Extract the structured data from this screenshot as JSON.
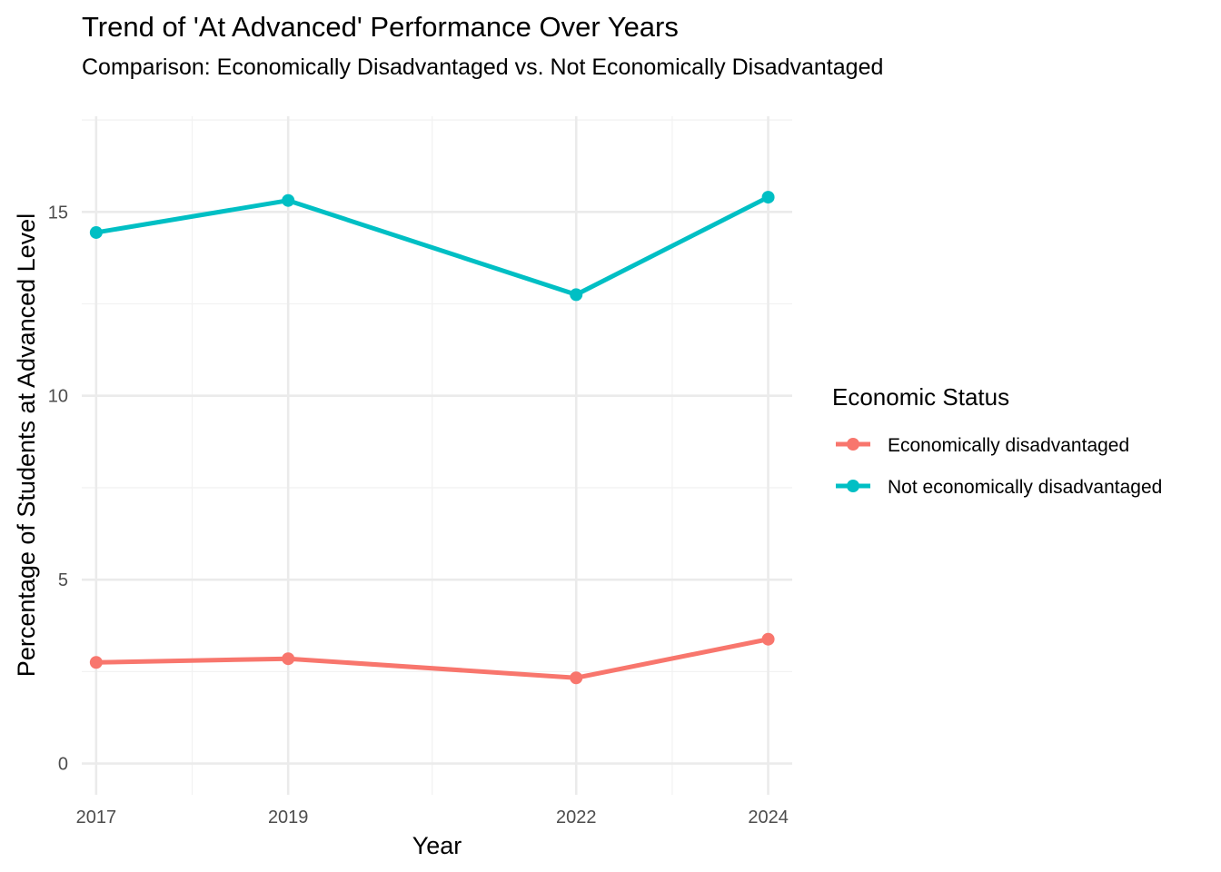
{
  "chart_data": {
    "type": "line",
    "title": "Trend of 'At Advanced' Performance Over Years",
    "subtitle": "Comparison: Economically Disadvantaged vs. Not Economically Disadvantaged",
    "xlabel": "Year",
    "ylabel": "Percentage of Students at Advanced Level",
    "x": [
      2017,
      2019,
      2022,
      2024
    ],
    "x_ticks": [
      "2017",
      "2019",
      "2022",
      "2024"
    ],
    "y_ticks": [
      "0",
      "5",
      "10",
      "15"
    ],
    "xlim": [
      2016.85,
      2024.25
    ],
    "ylim": [
      -0.85,
      17.6
    ],
    "grid": true,
    "legend": {
      "title": "Economic Status",
      "position": "right"
    },
    "series": [
      {
        "name": "Economically disadvantaged",
        "color": "#F8766D",
        "values": [
          2.75,
          2.85,
          2.33,
          3.38
        ]
      },
      {
        "name": "Not economically disadvantaged",
        "color": "#00BFC4",
        "values": [
          14.44,
          15.31,
          12.75,
          15.4
        ]
      }
    ]
  }
}
